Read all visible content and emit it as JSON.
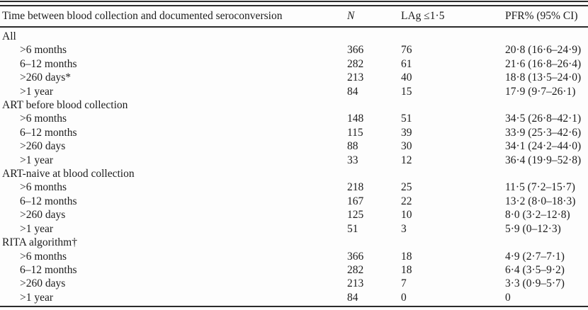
{
  "colors": {
    "background": "#fdfdfd",
    "text": "#1c1c1c",
    "rule": "#2b2b2b"
  },
  "table": {
    "columns": [
      "Time between blood collection and documented seroconversion",
      "N",
      "LAg ≤1·5",
      "PFR% (95% CI)"
    ],
    "sections": [
      {
        "label": "All",
        "rows": [
          {
            "label": ">6 months",
            "n": "366",
            "lag": "76",
            "pfr": "20·8 (16·6–24·9)"
          },
          {
            "label": "6–12 months",
            "n": "282",
            "lag": "61",
            "pfr": "21·6 (16·8–26·4)"
          },
          {
            "label": ">260 days*",
            "n": "213",
            "lag": "40",
            "pfr": "18·8 (13·5–24·0)"
          },
          {
            "label": ">1 year",
            "n": "84",
            "lag": "15",
            "pfr": "17·9 (9·7–26·1)"
          }
        ]
      },
      {
        "label": "ART before blood collection",
        "rows": [
          {
            "label": ">6 months",
            "n": "148",
            "lag": "51",
            "pfr": "34·5 (26·8–42·1)"
          },
          {
            "label": "6–12 months",
            "n": "115",
            "lag": "39",
            "pfr": "33·9 (25·3–42·6)"
          },
          {
            "label": ">260 days",
            "n": "88",
            "lag": "30",
            "pfr": "34·1 (24·2–44·0)"
          },
          {
            "label": ">1 year",
            "n": "33",
            "lag": "12",
            "pfr": "36·4 (19·9–52·8)"
          }
        ]
      },
      {
        "label": "ART-naive at blood collection",
        "rows": [
          {
            "label": ">6 months",
            "n": "218",
            "lag": "25",
            "pfr": "11·5 (7·2–15·7)"
          },
          {
            "label": "6–12 months",
            "n": "167",
            "lag": "22",
            "pfr": "13·2 (8·0–18·3)"
          },
          {
            "label": ">260 days",
            "n": "125",
            "lag": "10",
            "pfr": "8·0 (3·2–12·8)"
          },
          {
            "label": ">1 year",
            "n": "51",
            "lag": "3",
            "pfr": "5·9 (0–12·3)"
          }
        ]
      },
      {
        "label": "RITA algorithm†",
        "rows": [
          {
            "label": ">6 months",
            "n": "366",
            "lag": "18",
            "pfr": "4·9 (2·7–7·1)"
          },
          {
            "label": "6–12 months",
            "n": "282",
            "lag": "18",
            "pfr": "6·4 (3·5–9·2)"
          },
          {
            "label": ">260 days",
            "n": "213",
            "lag": "7",
            "pfr": "3·3 (0·9–5·7)"
          },
          {
            "label": ">1 year",
            "n": "84",
            "lag": "0",
            "pfr": "0"
          }
        ]
      }
    ]
  }
}
